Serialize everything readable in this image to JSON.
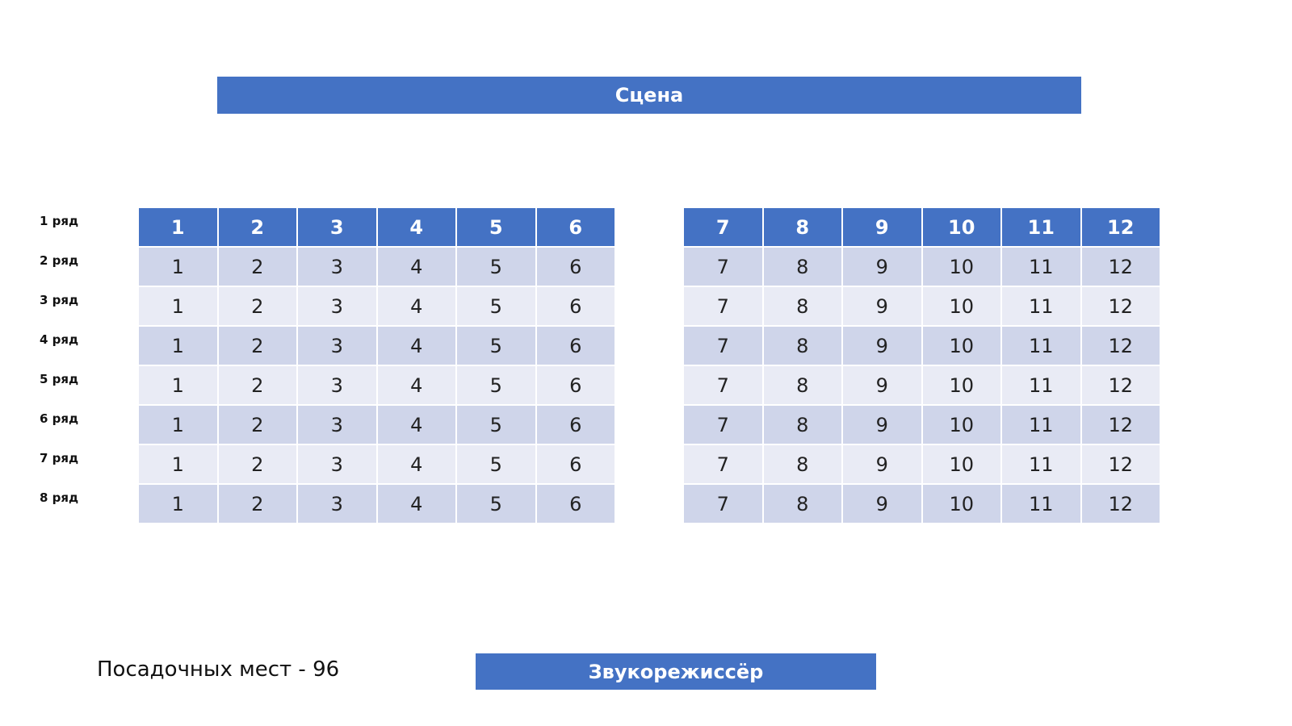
{
  "stage": "Сцена",
  "rows": [
    {
      "label": "1 ряд",
      "seats": [
        1,
        2,
        3,
        4,
        5,
        6,
        7,
        8,
        9,
        10,
        11,
        12
      ]
    },
    {
      "label": "2 ряд",
      "seats": [
        1,
        2,
        3,
        4,
        5,
        6,
        7,
        8,
        9,
        10,
        11,
        12
      ]
    },
    {
      "label": "3 ряд",
      "seats": [
        1,
        2,
        3,
        4,
        5,
        6,
        7,
        8,
        9,
        10,
        11,
        12
      ]
    },
    {
      "label": "4 ряд",
      "seats": [
        1,
        2,
        3,
        4,
        5,
        6,
        7,
        8,
        9,
        10,
        11,
        12
      ]
    },
    {
      "label": "5 ряд",
      "seats": [
        1,
        2,
        3,
        4,
        5,
        6,
        7,
        8,
        9,
        10,
        11,
        12
      ]
    },
    {
      "label": "6 ряд",
      "seats": [
        1,
        2,
        3,
        4,
        5,
        6,
        7,
        8,
        9,
        10,
        11,
        12
      ]
    },
    {
      "label": "7 ряд",
      "seats": [
        1,
        2,
        3,
        4,
        5,
        6,
        7,
        8,
        9,
        10,
        11,
        12
      ]
    },
    {
      "label": "8 ряд",
      "seats": [
        1,
        2,
        3,
        4,
        5,
        6,
        7,
        8,
        9,
        10,
        11,
        12
      ]
    }
  ],
  "seat_count_label": "Посадочных мест - 96",
  "sound_engineer": "Звукорежиссёр"
}
